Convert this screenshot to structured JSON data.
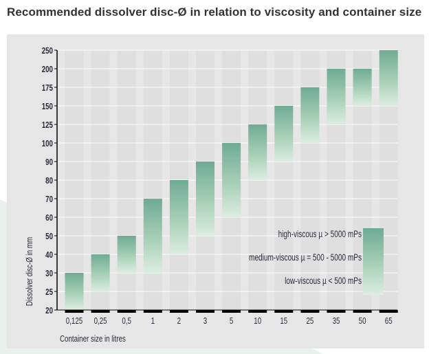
{
  "title": "Recommended dissolver disc-Ø in relation to viscosity and container size",
  "chart_data": {
    "type": "bar",
    "subtype": "floating-range",
    "title": "Recommended dissolver disc-Ø in relation to viscosity and container size",
    "xlabel": "Container size in litres",
    "ylabel": "Dissolver disc-Ø in mm",
    "y_ticks": [
      20,
      25,
      30,
      40,
      50,
      60,
      70,
      80,
      90,
      100,
      125,
      150,
      175,
      200,
      250
    ],
    "y_scale": "categorical-ordinal (equal spacing between ticks)",
    "ylim": [
      20,
      250
    ],
    "grid": true,
    "categories": [
      "0,125",
      "0,25",
      "0,5",
      "1",
      "2",
      "3",
      "5",
      "10",
      "15",
      "25",
      "35",
      "50",
      "65"
    ],
    "ranges": [
      [
        20,
        30
      ],
      [
        25,
        40
      ],
      [
        30,
        50
      ],
      [
        30,
        70
      ],
      [
        40,
        80
      ],
      [
        50,
        90
      ],
      [
        60,
        100
      ],
      [
        80,
        125
      ],
      [
        90,
        150
      ],
      [
        100,
        175
      ],
      [
        125,
        200
      ],
      [
        150,
        200
      ],
      [
        150,
        250
      ]
    ],
    "legend": {
      "placement": "right",
      "gradient_labels": [
        "high-viscous µ > 5000 mPs",
        "medium-viscous µ = 500 - 5000 mPs",
        "low-viscous µ < 500 mPs"
      ]
    },
    "colors": {
      "top": "#6fab94",
      "bottom": "#dcede1",
      "panel": "#e6e6e6",
      "column": "#dfdfdf"
    }
  }
}
